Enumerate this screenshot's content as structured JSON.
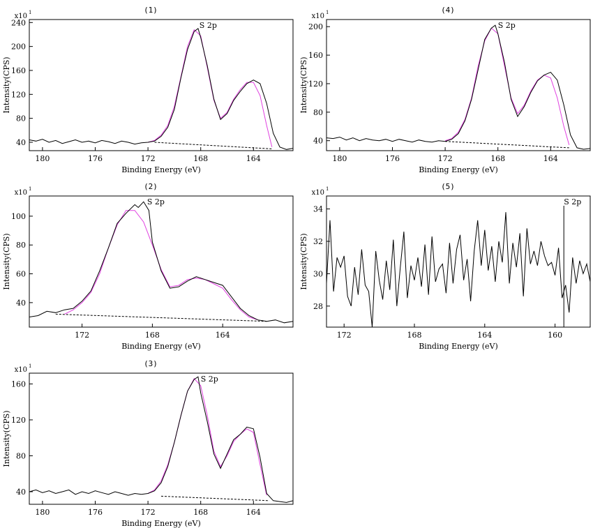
{
  "chart_data": [
    {
      "id": "p1",
      "type": "line",
      "title": "(1)",
      "xlabel": "Binding Energy (eV)",
      "ylabel": "Intensity(CPS)",
      "y_multiplier": "x10",
      "y_multiplier_exp": "1",
      "peak_label": "S 2p",
      "peak_label_x": 168.1,
      "x_reversed": true,
      "xlim": [
        181,
        161
      ],
      "ylim": [
        26,
        245
      ],
      "x_ticks": [
        180,
        176,
        172,
        168,
        164
      ],
      "y_ticks": [
        40,
        80,
        120,
        160,
        200,
        240
      ],
      "background": {
        "x": [
          171.5,
          162.6
        ],
        "y": [
          40,
          29
        ]
      },
      "fit": {
        "x": [
          172,
          171.5,
          171,
          170.5,
          170,
          169.5,
          169,
          168.5,
          168,
          167.5,
          167,
          166.5,
          166,
          165.5,
          165,
          164.5,
          164,
          163.5,
          163,
          162.6
        ],
        "y": [
          40,
          43,
          52,
          68,
          100,
          150,
          200,
          228,
          218,
          165,
          110,
          80,
          90,
          112,
          128,
          140,
          140,
          118,
          68,
          32
        ]
      },
      "series": [
        {
          "x": [
            181,
            180.5,
            180,
            179.5,
            179,
            178.5,
            178,
            177.5,
            177,
            176.5,
            176,
            175.5,
            175,
            174.5,
            174,
            173.5,
            173,
            172.5,
            172,
            171.5,
            171,
            170.5,
            170,
            169.5,
            169,
            168.5,
            168.2,
            168,
            167.5,
            167,
            166.5,
            166,
            165.5,
            165,
            164.5,
            164,
            163.5,
            163,
            162.5,
            162,
            161.5,
            161
          ],
          "y": [
            44,
            42,
            45,
            40,
            43,
            38,
            41,
            44,
            40,
            42,
            39,
            43,
            41,
            38,
            42,
            40,
            37,
            39,
            40,
            42,
            50,
            65,
            95,
            148,
            195,
            225,
            230,
            215,
            168,
            112,
            78,
            88,
            110,
            125,
            138,
            144,
            138,
            105,
            55,
            32,
            28,
            30
          ]
        }
      ]
    },
    {
      "id": "p2",
      "type": "line",
      "title": "(2)",
      "xlabel": "Binding Energy (eV)",
      "ylabel": "Intensity(CPS)",
      "y_multiplier": "x10",
      "y_multiplier_exp": "1",
      "peak_label": "S 2p",
      "peak_label_x": 168.3,
      "x_reversed": true,
      "xlim": [
        175,
        160
      ],
      "ylim": [
        23,
        114
      ],
      "x_ticks": [
        172,
        168,
        164
      ],
      "y_ticks": [
        40,
        60,
        80,
        100
      ],
      "background": {
        "x": [
          173.5,
          161.5
        ],
        "y": [
          32,
          27
        ]
      },
      "fit": {
        "x": [
          173,
          172.5,
          172,
          171.5,
          171,
          170.5,
          170,
          169.5,
          169,
          168.5,
          168,
          167.5,
          167,
          166.5,
          166,
          165.5,
          165,
          164.5,
          164,
          163.5,
          163,
          162.5,
          162
        ],
        "y": [
          32,
          35,
          40,
          47,
          60,
          78,
          94,
          104,
          104,
          96,
          80,
          63,
          51,
          52,
          56,
          57,
          56,
          53,
          50,
          42,
          35,
          30,
          28
        ]
      },
      "series": [
        {
          "x": [
            175,
            174.5,
            174,
            173.5,
            173,
            172.5,
            172,
            171.5,
            171,
            170.5,
            170,
            169.5,
            169,
            168.8,
            168.5,
            168.2,
            168,
            167.5,
            167,
            166.5,
            166,
            165.5,
            165,
            164.5,
            164,
            163.5,
            163,
            162.5,
            162,
            161.5,
            161,
            160.5,
            160
          ],
          "y": [
            30,
            31,
            34,
            33,
            35,
            36,
            41,
            48,
            62,
            78,
            95,
            102,
            108,
            106,
            110,
            104,
            82,
            62,
            50,
            51,
            55,
            58,
            56,
            54,
            52,
            44,
            36,
            31,
            28,
            27,
            28,
            26,
            27
          ]
        }
      ]
    },
    {
      "id": "p3",
      "type": "line",
      "title": "(3)",
      "xlabel": "Binding Energy (eV)",
      "ylabel": "Intensity(CPS)",
      "y_multiplier": "x10",
      "y_multiplier_exp": "1",
      "peak_label": "S 2p",
      "peak_label_x": 168.0,
      "x_reversed": true,
      "xlim": [
        181,
        161
      ],
      "ylim": [
        26,
        172
      ],
      "x_ticks": [
        180,
        176,
        172,
        168,
        164
      ],
      "y_ticks": [
        40,
        80,
        120,
        160
      ],
      "background": {
        "x": [
          171.0,
          162.8
        ],
        "y": [
          35,
          30
        ]
      },
      "fit": {
        "x": [
          172,
          171.5,
          171,
          170.5,
          170,
          169.5,
          169,
          168.5,
          168,
          167.5,
          167,
          166.5,
          166,
          165.5,
          165,
          164.5,
          164,
          163.5,
          163
        ],
        "y": [
          38,
          42,
          52,
          70,
          95,
          125,
          152,
          166,
          158,
          125,
          85,
          68,
          80,
          96,
          104,
          110,
          106,
          70,
          36
        ]
      },
      "series": [
        {
          "x": [
            181,
            180.5,
            180,
            179.5,
            179,
            178.5,
            178,
            177.5,
            177,
            176.5,
            176,
            175.5,
            175,
            174.5,
            174,
            173.5,
            173,
            172.5,
            172,
            171.5,
            171,
            170.5,
            170,
            169.5,
            169,
            168.5,
            168.2,
            168,
            167.5,
            167,
            166.5,
            166,
            165.5,
            165,
            164.5,
            164,
            163.5,
            163,
            162.5,
            162,
            161.5,
            161
          ],
          "y": [
            40,
            42,
            39,
            41,
            38,
            40,
            42,
            37,
            40,
            38,
            41,
            39,
            37,
            40,
            38,
            36,
            38,
            37,
            38,
            41,
            50,
            68,
            95,
            125,
            152,
            165,
            168,
            150,
            118,
            82,
            66,
            82,
            98,
            104,
            112,
            110,
            78,
            38,
            30,
            29,
            28,
            30
          ]
        }
      ]
    },
    {
      "id": "p4",
      "type": "line",
      "title": "(4)",
      "xlabel": "Binding Energy (eV)",
      "ylabel": "Intensity(CPS)",
      "y_multiplier": "x10",
      "y_multiplier_exp": "1",
      "peak_label": "S 2p",
      "peak_label_x": 168.0,
      "x_reversed": true,
      "xlim": [
        181,
        161
      ],
      "ylim": [
        26,
        210
      ],
      "x_ticks": [
        180,
        176,
        172,
        168,
        164
      ],
      "y_ticks": [
        40,
        80,
        120,
        160,
        200
      ],
      "background": {
        "x": [
          172.0,
          162.6
        ],
        "y": [
          39,
          30
        ]
      },
      "fit": {
        "x": [
          172,
          171.5,
          171,
          170.5,
          170,
          169.5,
          169,
          168.5,
          168,
          167.5,
          167,
          166.5,
          166,
          165.5,
          165,
          164.5,
          164,
          163.5,
          163,
          162.6
        ],
        "y": [
          40,
          43,
          52,
          70,
          100,
          145,
          180,
          198,
          190,
          145,
          100,
          78,
          90,
          110,
          125,
          132,
          128,
          100,
          60,
          34
        ]
      },
      "series": [
        {
          "x": [
            181,
            180.5,
            180,
            179.5,
            179,
            178.5,
            178,
            177.5,
            177,
            176.5,
            176,
            175.5,
            175,
            174.5,
            174,
            173.5,
            173,
            172.5,
            172,
            171.5,
            171,
            170.5,
            170,
            169.5,
            169,
            168.5,
            168.2,
            168,
            167.5,
            167,
            166.5,
            166,
            165.5,
            165,
            164.5,
            164,
            163.5,
            163,
            162.5,
            162,
            161.5,
            161
          ],
          "y": [
            44,
            43,
            45,
            41,
            44,
            40,
            43,
            41,
            40,
            42,
            39,
            42,
            40,
            38,
            41,
            39,
            38,
            40,
            39,
            42,
            50,
            68,
            98,
            140,
            182,
            198,
            202,
            190,
            150,
            98,
            74,
            88,
            108,
            124,
            132,
            136,
            125,
            90,
            48,
            30,
            28,
            29
          ]
        }
      ]
    },
    {
      "id": "p5",
      "type": "line",
      "title": "(5)",
      "xlabel": "Binding Energy (eV)",
      "ylabel": "Intensity(CPS)",
      "y_multiplier": "x10",
      "y_multiplier_exp": "1",
      "peak_label": "S 2p",
      "peak_label_x": 159.5,
      "peak_marker_x": 159.5,
      "x_reversed": true,
      "xlim": [
        173,
        158
      ],
      "ylim": [
        26.7,
        34.8
      ],
      "x_ticks": [
        172,
        168,
        164,
        160
      ],
      "y_ticks": [
        28,
        30,
        32,
        34
      ],
      "series": [
        {
          "x": [
            173,
            172.8,
            172.6,
            172.4,
            172.2,
            172,
            171.8,
            171.6,
            171.4,
            171.2,
            171,
            170.8,
            170.6,
            170.4,
            170.2,
            170,
            169.8,
            169.6,
            169.4,
            169.2,
            169,
            168.8,
            168.6,
            168.4,
            168.2,
            168,
            167.8,
            167.6,
            167.4,
            167.2,
            167,
            166.8,
            166.6,
            166.4,
            166.2,
            166,
            165.8,
            165.6,
            165.4,
            165.2,
            165,
            164.8,
            164.6,
            164.4,
            164.2,
            164,
            163.8,
            163.6,
            163.4,
            163.2,
            163,
            162.8,
            162.6,
            162.4,
            162.2,
            162,
            161.8,
            161.6,
            161.4,
            161.2,
            161,
            160.8,
            160.6,
            160.4,
            160.2,
            160,
            159.8,
            159.6,
            159.4,
            159.2,
            159,
            158.8,
            158.6,
            158.4,
            158.2,
            158
          ],
          "y": [
            29.4,
            33.3,
            28.9,
            31.0,
            30.4,
            31.1,
            28.6,
            28.0,
            30.4,
            28.7,
            31.5,
            29.3,
            28.9,
            26.7,
            31.4,
            29.6,
            28.4,
            30.8,
            29.0,
            32.1,
            28.0,
            30.4,
            32.6,
            28.5,
            30.5,
            29.6,
            31.0,
            29.2,
            31.8,
            28.7,
            32.3,
            29.5,
            30.3,
            30.6,
            28.8,
            31.9,
            29.4,
            31.5,
            32.4,
            29.6,
            30.9,
            28.3,
            31.4,
            33.3,
            30.5,
            32.7,
            30.2,
            31.7,
            29.5,
            32.0,
            30.7,
            33.8,
            29.4,
            31.9,
            30.4,
            32.5,
            28.6,
            32.8,
            30.6,
            31.4,
            30.5,
            32.0,
            31.1,
            30.5,
            30.7,
            29.9,
            31.6,
            28.5,
            29.3,
            27.6,
            31.0,
            29.4,
            30.8,
            30.0,
            30.6,
            29.5
          ]
        }
      ]
    }
  ]
}
